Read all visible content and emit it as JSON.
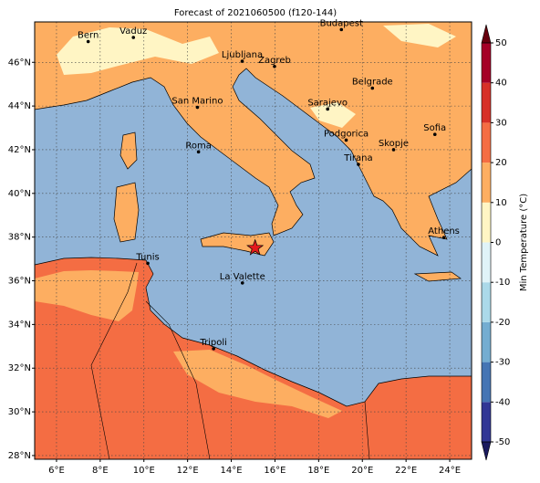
{
  "chart_data": {
    "type": "map",
    "title": "Forecast of 2021060500 (f120-144)",
    "xlim": [
      5,
      25
    ],
    "ylim": [
      27.83,
      47.85
    ],
    "xticks": [
      {
        "value": 6,
        "label": "6°E"
      },
      {
        "value": 8,
        "label": "8°E"
      },
      {
        "value": 10,
        "label": "10°E"
      },
      {
        "value": 12,
        "label": "12°E"
      },
      {
        "value": 14,
        "label": "14°E"
      },
      {
        "value": 16,
        "label": "16°E"
      },
      {
        "value": 18,
        "label": "18°E"
      },
      {
        "value": 20,
        "label": "20°E"
      },
      {
        "value": 22,
        "label": "22°E"
      },
      {
        "value": 24,
        "label": "24°E"
      }
    ],
    "yticks": [
      {
        "value": 28,
        "label": "28°N"
      },
      {
        "value": 30,
        "label": "30°N"
      },
      {
        "value": 32,
        "label": "32°N"
      },
      {
        "value": 34,
        "label": "34°N"
      },
      {
        "value": 36,
        "label": "36°N"
      },
      {
        "value": 38,
        "label": "38°N"
      },
      {
        "value": 40,
        "label": "40°N"
      },
      {
        "value": 42,
        "label": "42°N"
      },
      {
        "value": 44,
        "label": "44°N"
      },
      {
        "value": 46,
        "label": "46°N"
      }
    ],
    "grid": true,
    "cities": [
      {
        "name": "Bern",
        "lon": 7.45,
        "lat": 46.95
      },
      {
        "name": "Vaduz",
        "lon": 9.52,
        "lat": 47.14
      },
      {
        "name": "Budapest",
        "lon": 19.04,
        "lat": 47.5
      },
      {
        "name": "Ljubljana",
        "lon": 14.5,
        "lat": 46.05
      },
      {
        "name": "Zagreb",
        "lon": 15.98,
        "lat": 45.81
      },
      {
        "name": "Belgrade",
        "lon": 20.46,
        "lat": 44.82
      },
      {
        "name": "San Marino",
        "lon": 12.45,
        "lat": 43.94
      },
      {
        "name": "Sarajevo",
        "lon": 18.41,
        "lat": 43.86
      },
      {
        "name": "Sofia",
        "lon": 23.32,
        "lat": 42.7
      },
      {
        "name": "Podgorica",
        "lon": 19.26,
        "lat": 42.44
      },
      {
        "name": "Skopje",
        "lon": 21.43,
        "lat": 42.0
      },
      {
        "name": "Roma",
        "lon": 12.5,
        "lat": 41.9
      },
      {
        "name": "Tirana",
        "lon": 19.82,
        "lat": 41.33
      },
      {
        "name": "Athens",
        "lon": 23.73,
        "lat": 37.98
      },
      {
        "name": "Tunis",
        "lon": 10.18,
        "lat": 36.8
      },
      {
        "name": "La Valette",
        "lon": 14.51,
        "lat": 35.9
      },
      {
        "name": "Tripoli",
        "lon": 13.19,
        "lat": 32.89
      }
    ],
    "marker": {
      "lon": 15.09,
      "lat": 37.5,
      "color": "#e41a1c"
    },
    "colorbar": {
      "label": "Min Temperature (°C)",
      "ticks": [
        -50,
        -40,
        -30,
        -20,
        -10,
        0,
        10,
        20,
        30,
        40,
        50
      ],
      "colors": [
        "#313695",
        "#4575b4",
        "#74add1",
        "#abd9e9",
        "#e0f3f8",
        "#fff5c4",
        "#fdae61",
        "#f46d43",
        "#d73027",
        "#a50026"
      ],
      "under_color": "#1a1a5e",
      "over_color": "#67000d"
    }
  }
}
